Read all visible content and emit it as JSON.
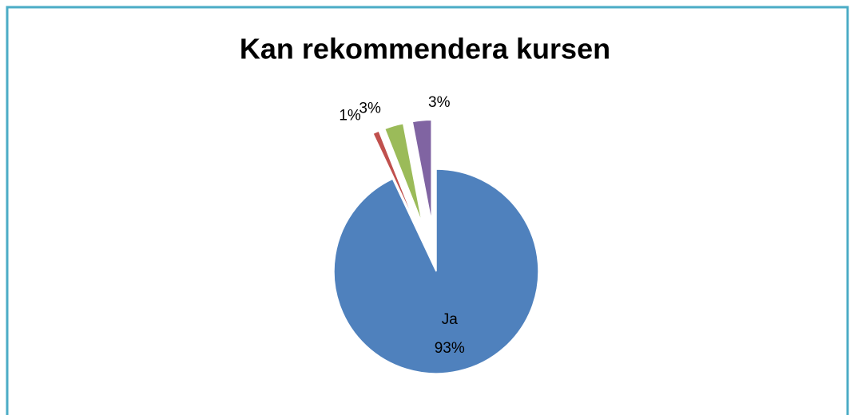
{
  "chart_data": {
    "type": "pie",
    "title": "Kan rekommendera kursen",
    "categories": [
      "Ja",
      null,
      null,
      null
    ],
    "values": [
      93,
      1,
      3,
      3
    ],
    "value_labels": [
      "93%",
      "1%",
      "3%",
      "3%"
    ],
    "colors": [
      "#4f81bd",
      "#c0504d",
      "#9bbb59",
      "#8064a2"
    ]
  }
}
